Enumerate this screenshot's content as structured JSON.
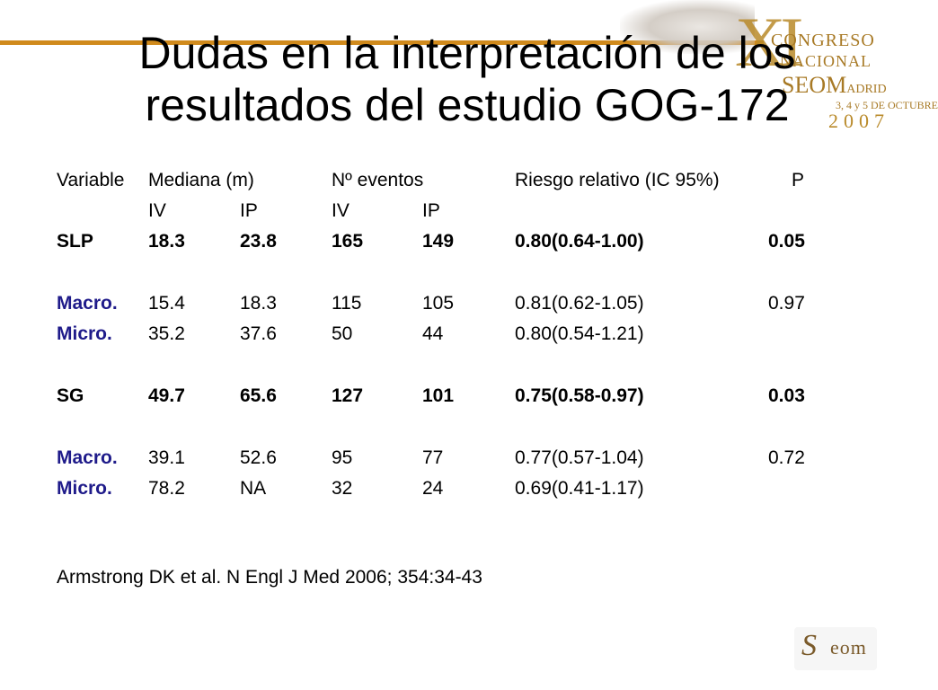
{
  "logo": {
    "numeral": "XI",
    "line1": "CONGRESO",
    "line2": "NACIONAL",
    "line3_main": "SEOM",
    "line3_city": "ADRID",
    "line4": "3, 4 y 5 DE OCTUBRE",
    "line5": "2007"
  },
  "title": "Dudas en la interpretación de los resultados del estudio GOG-172",
  "table": {
    "header": [
      "Variable",
      "Mediana (m)",
      "",
      "Nº eventos",
      "",
      "Riesgo relativo (IC 95%)",
      "P"
    ],
    "subheader": [
      "",
      "IV",
      "IP",
      "IV",
      "IP",
      "",
      ""
    ],
    "rows": [
      {
        "cells": [
          "SLP",
          "18.3",
          "23.8",
          "165",
          "149",
          "0.80(0.64-1.00)",
          "0.05"
        ]
      },
      {
        "cells": [
          "Macro.",
          "15.4",
          "18.3",
          "115",
          "105",
          "0.81(0.62-1.05)",
          "0.97"
        ]
      },
      {
        "cells": [
          "Micro.",
          "35.2",
          "37.6",
          "50",
          "44",
          "0.80(0.54-1.21)",
          ""
        ]
      },
      {
        "cells": [
          "SG",
          "49.7",
          "65.6",
          "127",
          "101",
          "0.75(0.58-0.97)",
          "0.03"
        ]
      },
      {
        "cells": [
          "Macro.",
          "39.1",
          "52.6",
          "95",
          "77",
          "0.77(0.57-1.04)",
          "0.72"
        ]
      },
      {
        "cells": [
          "Micro.",
          "78.2",
          "NA",
          "32",
          "24",
          "0.69(0.41-1.17)",
          ""
        ]
      }
    ]
  },
  "citation": "Armstrong DK et al. N Engl J Med 2006; 354:34-43",
  "footer_logo": {
    "mark": "S",
    "rest": "eom"
  },
  "colors": {
    "accent_rule": "#d08a1c",
    "subgroup_label": "#1f1b8a",
    "logo_gold": "#a87a26"
  }
}
